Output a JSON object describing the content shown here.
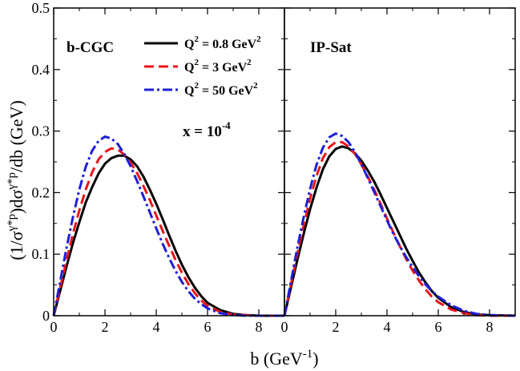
{
  "chart_data": {
    "type": "line",
    "ylabel_parts": {
      "a": "(1/σ",
      "b": "γ*p",
      "c": ")dσ",
      "d": "γ*p",
      "e": "/db (GeV)"
    },
    "xlabel_parts": {
      "a": "b (GeV",
      "b": "-1",
      "c": ")"
    },
    "ylim": [
      0,
      0.5
    ],
    "yticks": [
      {
        "value": 0,
        "label": "0"
      },
      {
        "value": 0.1,
        "label": "0.1"
      },
      {
        "value": 0.2,
        "label": "0.2"
      },
      {
        "value": 0.3,
        "label": "0.3"
      },
      {
        "value": 0.4,
        "label": "0.4"
      },
      {
        "value": 0.5,
        "label": "0.5"
      }
    ],
    "xticks": [
      {
        "value": 0,
        "label": "0"
      },
      {
        "value": 2,
        "label": "2"
      },
      {
        "value": 4,
        "label": "4"
      },
      {
        "value": 6,
        "label": "6"
      },
      {
        "value": 8,
        "label": "8"
      }
    ],
    "legend": [
      {
        "series": "q08",
        "text_main": "Q",
        "sup": "2",
        "text_rest": " = 0.8 GeV",
        "sup2": "2"
      },
      {
        "series": "q3",
        "text_main": "Q",
        "sup": "2",
        "text_rest": " = 3 GeV",
        "sup2": "2"
      },
      {
        "series": "q50",
        "text_main": "Q",
        "sup": "2",
        "text_rest": " = 50 GeV",
        "sup2": "2"
      }
    ],
    "annotation": {
      "main": "x = 10",
      "sup": "-4"
    },
    "series_styles": {
      "q08": {
        "color": "#000000",
        "dash": "",
        "width": 3
      },
      "q3": {
        "color": "#e8141c",
        "dash": "12,6",
        "width": 3
      },
      "q50": {
        "color": "#1f1fd6",
        "dash": "12,4,3,4",
        "width": 3
      }
    },
    "panels": [
      {
        "id": "bcgc",
        "label": "b-CGC",
        "xlim": [
          0,
          9
        ],
        "series": [
          {
            "id": "q08",
            "x": [
              0,
              0.25,
              0.5,
              0.75,
              1,
              1.25,
              1.5,
              1.75,
              2,
              2.25,
              2.5,
              2.75,
              3,
              3.25,
              3.5,
              3.75,
              4,
              4.25,
              4.5,
              4.75,
              5,
              5.25,
              5.5,
              5.75,
              6,
              6.5,
              7,
              7.5,
              8,
              9
            ],
            "y": [
              0,
              0.04,
              0.08,
              0.118,
              0.152,
              0.184,
              0.209,
              0.231,
              0.247,
              0.256,
              0.26,
              0.26,
              0.254,
              0.243,
              0.226,
              0.205,
              0.182,
              0.157,
              0.131,
              0.106,
              0.083,
              0.063,
              0.046,
              0.032,
              0.021,
              0.009,
              0.003,
              0.001,
              0,
              0
            ]
          },
          {
            "id": "q3",
            "x": [
              0,
              0.25,
              0.5,
              0.75,
              1,
              1.25,
              1.5,
              1.75,
              2,
              2.25,
              2.5,
              2.75,
              3,
              3.25,
              3.5,
              3.75,
              4,
              4.25,
              4.5,
              4.75,
              5,
              5.25,
              5.5,
              5.75,
              6,
              6.5,
              7,
              7.5,
              8,
              9
            ],
            "y": [
              0,
              0.045,
              0.09,
              0.133,
              0.171,
              0.205,
              0.233,
              0.254,
              0.266,
              0.272,
              0.27,
              0.262,
              0.249,
              0.232,
              0.211,
              0.188,
              0.163,
              0.138,
              0.114,
              0.091,
              0.07,
              0.052,
              0.037,
              0.025,
              0.016,
              0.006,
              0.002,
              0.001,
              0,
              0
            ]
          },
          {
            "id": "q50",
            "x": [
              0,
              0.25,
              0.5,
              0.75,
              1,
              1.25,
              1.5,
              1.75,
              2,
              2.25,
              2.5,
              2.75,
              3,
              3.25,
              3.5,
              3.75,
              4,
              4.25,
              4.5,
              4.75,
              5,
              5.25,
              5.5,
              5.75,
              6,
              6.5,
              7,
              7.5,
              8,
              9
            ],
            "y": [
              0,
              0.055,
              0.11,
              0.16,
              0.205,
              0.242,
              0.268,
              0.284,
              0.291,
              0.288,
              0.279,
              0.263,
              0.243,
              0.219,
              0.194,
              0.168,
              0.142,
              0.117,
              0.094,
              0.073,
              0.055,
              0.04,
              0.028,
              0.019,
              0.012,
              0.004,
              0.001,
              0,
              0,
              0
            ]
          }
        ]
      },
      {
        "id": "ipsat",
        "label": "IP-Sat",
        "xlim": [
          0,
          9
        ],
        "series": [
          {
            "id": "q08",
            "x": [
              0,
              0.25,
              0.5,
              0.75,
              1,
              1.25,
              1.5,
              1.75,
              2,
              2.25,
              2.5,
              2.75,
              3,
              3.25,
              3.5,
              3.75,
              4,
              4.25,
              4.5,
              4.75,
              5,
              5.25,
              5.5,
              5.75,
              6,
              6.5,
              7,
              7.5,
              8,
              9
            ],
            "y": [
              0,
              0.045,
              0.09,
              0.133,
              0.173,
              0.208,
              0.238,
              0.259,
              0.271,
              0.275,
              0.272,
              0.264,
              0.252,
              0.236,
              0.218,
              0.197,
              0.175,
              0.153,
              0.131,
              0.109,
              0.089,
              0.07,
              0.054,
              0.04,
              0.029,
              0.014,
              0.006,
              0.002,
              0.001,
              0
            ]
          },
          {
            "id": "q3",
            "x": [
              0,
              0.25,
              0.5,
              0.75,
              1,
              1.25,
              1.5,
              1.75,
              2,
              2.25,
              2.5,
              2.75,
              3,
              3.25,
              3.5,
              3.75,
              4,
              4.25,
              4.5,
              4.75,
              5,
              5.25,
              5.5,
              5.75,
              6,
              6.5,
              7,
              7.5,
              8,
              9
            ],
            "y": [
              0,
              0.05,
              0.1,
              0.147,
              0.19,
              0.227,
              0.256,
              0.274,
              0.282,
              0.282,
              0.275,
              0.263,
              0.246,
              0.226,
              0.205,
              0.182,
              0.158,
              0.135,
              0.113,
              0.092,
              0.073,
              0.057,
              0.043,
              0.031,
              0.022,
              0.01,
              0.004,
              0.001,
              0,
              0
            ]
          },
          {
            "id": "q50",
            "x": [
              0,
              0.25,
              0.5,
              0.75,
              1,
              1.25,
              1.5,
              1.75,
              2,
              2.25,
              2.5,
              2.75,
              3,
              3.25,
              3.5,
              3.75,
              4,
              4.25,
              4.5,
              4.75,
              5,
              5.25,
              5.5,
              5.75,
              6,
              6.5,
              7,
              7.5,
              8,
              9
            ],
            "y": [
              0,
              0.055,
              0.11,
              0.16,
              0.206,
              0.245,
              0.273,
              0.29,
              0.296,
              0.292,
              0.282,
              0.266,
              0.246,
              0.224,
              0.201,
              0.178,
              0.155,
              0.133,
              0.113,
              0.095,
              0.079,
              0.064,
              0.051,
              0.04,
              0.031,
              0.017,
              0.008,
              0.003,
              0.001,
              0
            ]
          }
        ]
      }
    ]
  }
}
